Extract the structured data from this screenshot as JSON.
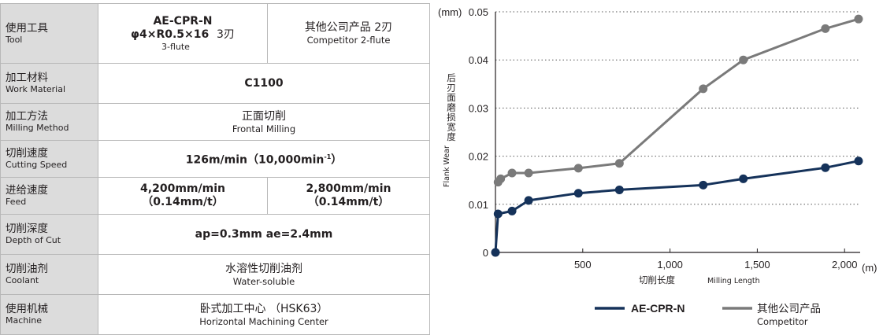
{
  "table": {
    "rows": [
      {
        "label_cn": "使用工具",
        "label_en": "Tool"
      },
      {
        "label_cn": "加工材料",
        "label_en": "Work Material"
      },
      {
        "label_cn": "加工方法",
        "label_en": "Milling Method"
      },
      {
        "label_cn": "切削速度",
        "label_en": "Cutting Speed"
      },
      {
        "label_cn": "进给速度",
        "label_en": "Feed"
      },
      {
        "label_cn": "切削深度",
        "label_en": "Depth of Cut"
      },
      {
        "label_cn": "切削油剂",
        "label_en": "Coolant"
      },
      {
        "label_cn": "使用机械",
        "label_en": "Machine"
      }
    ],
    "tool_ours_name": "AE-CPR-N",
    "tool_ours_spec": "φ4×R0.5×16",
    "tool_ours_flute_cn": "3刃",
    "tool_ours_flute_en": "3-flute",
    "tool_comp_cn": "其他公司产品  2刃",
    "tool_comp_en": "Competitor 2-flute",
    "material": "C1100",
    "method_cn": "正面切削",
    "method_en": "Frontal Milling",
    "speed_main": "126m/min（10,000min",
    "speed_sup": "-1",
    "speed_close": "）",
    "feed_ours_1": "4,200mm/min",
    "feed_ours_2": "（0.14mm/t）",
    "feed_comp_1": "2,800mm/min",
    "feed_comp_2": "（0.14mm/t）",
    "depth": "ap=0.3mm  ae=2.4mm",
    "coolant_cn": "水溶性切削油剂",
    "coolant_en": "Water-soluble",
    "machine_cn": "卧式加工中心 （HSK63）",
    "machine_en": "Horizontal Machining Center"
  },
  "colors": {
    "ours": "#15325a",
    "competitor": "#7a7a7a",
    "label_bg": "#dcdcdc",
    "grid": "#555555"
  },
  "chart_data": {
    "type": "line",
    "x_unit": "(m)",
    "y_unit": "(mm)",
    "ylabel_cn": "后刃面磨损宽度",
    "ylabel_en": "Flank Wear",
    "xlabel_cn": "切削长度",
    "xlabel_en": "Milling Length",
    "xlim": [
      0,
      2100
    ],
    "ylim": [
      0,
      0.05
    ],
    "x_ticks": [
      500,
      1000,
      1500,
      2000
    ],
    "x_tick_labels": [
      "500",
      "1,000",
      "1,500",
      "2,000"
    ],
    "y_ticks": [
      0,
      0.01,
      0.02,
      0.03,
      0.04,
      0.05
    ],
    "y_tick_labels": [
      "0",
      "0.01",
      "0.02",
      "0.03",
      "0.04",
      "0.05"
    ],
    "grid": "horizontal dotted",
    "legend_position": "bottom",
    "series": [
      {
        "name": "AE-CPR-N",
        "color": "#15325a",
        "x": [
          0,
          15,
          95,
          190,
          475,
          710,
          1190,
          1420,
          1890,
          2080
        ],
        "y": [
          0,
          0.008,
          0.0086,
          0.0108,
          0.0123,
          0.013,
          0.014,
          0.0153,
          0.0176,
          0.019
        ]
      },
      {
        "name": "其他公司产品",
        "name_en": "Competitor",
        "color": "#7a7a7a",
        "x": [
          15,
          30,
          95,
          190,
          475,
          710,
          1190,
          1420,
          1890,
          2080
        ],
        "y": [
          0.0146,
          0.0153,
          0.0165,
          0.0165,
          0.0175,
          0.0185,
          0.034,
          0.04,
          0.0465,
          0.0485
        ]
      }
    ]
  }
}
